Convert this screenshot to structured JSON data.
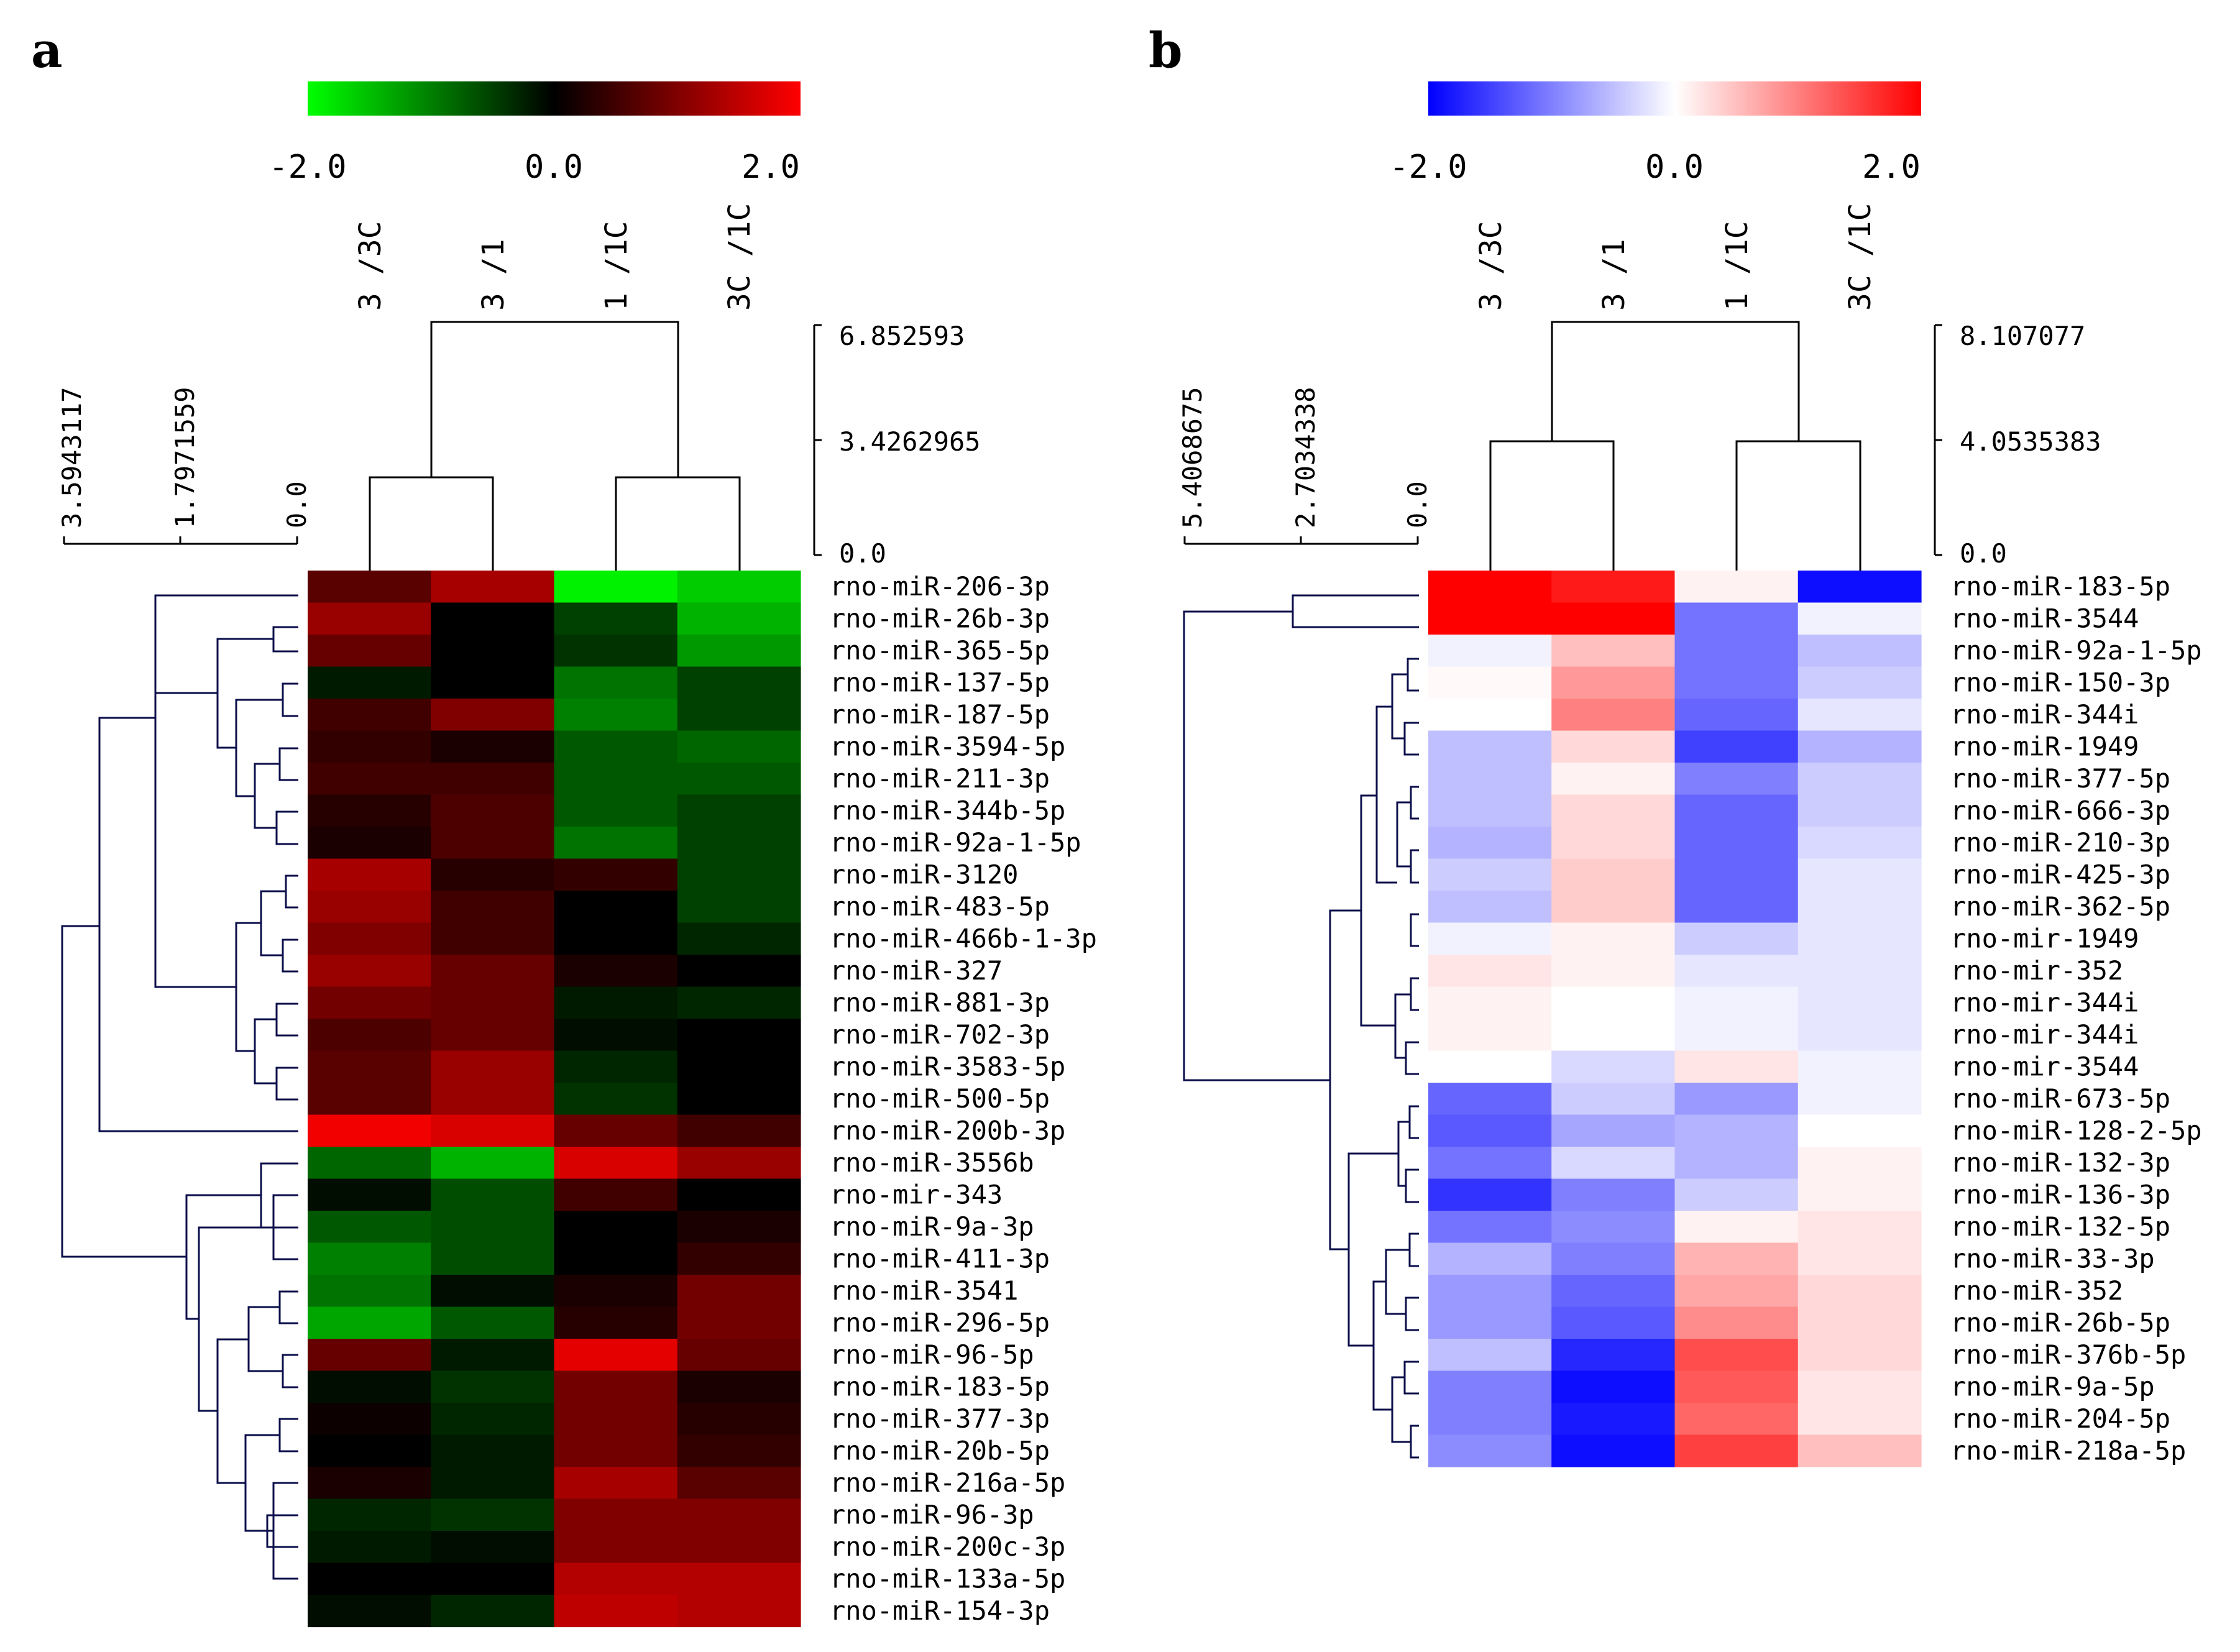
{
  "panels": [
    {
      "letter": "a",
      "colorbar": {
        "ticks": [
          "-2.0",
          "0.0",
          "2.0"
        ],
        "colors": [
          "#00ff00",
          "#000000",
          "#ff0000"
        ]
      },
      "columns": [
        "3 /3C",
        "3 /1",
        "1 /1C",
        "3C /1C"
      ],
      "col_dendro_scale": [
        "6.852593",
        "3.4262965",
        "0.0"
      ],
      "row_dendro_scale": [
        "3.5943117",
        "1.7971559",
        "0.0"
      ]
    },
    {
      "letter": "b",
      "colorbar": {
        "ticks": [
          "-2.0",
          "0.0",
          "2.0"
        ],
        "colors": [
          "#0000ff",
          "#ffffff",
          "#ff0000"
        ]
      },
      "columns": [
        "3 /3C",
        "3 /1",
        "1 /1C",
        "3C /1C"
      ],
      "col_dendro_scale": [
        "8.107077",
        "4.0535383",
        "0.0"
      ],
      "row_dendro_scale": [
        "5.4068675",
        "2.7034338",
        "0.0"
      ]
    }
  ],
  "chart_data": [
    {
      "type": "heatmap",
      "panel": "a",
      "columns": [
        "3 /3C",
        "3 /1",
        "1 /1C",
        "3C /1C"
      ],
      "color_range": [
        -2.0,
        2.0
      ],
      "rows": [
        "rno-miR-206-3p",
        "rno-miR-26b-3p",
        "rno-miR-365-5p",
        "rno-miR-137-5p",
        "rno-miR-187-5p",
        "rno-miR-3594-5p",
        "rno-miR-211-3p",
        "rno-miR-344b-5p",
        "rno-miR-92a-1-5p",
        "rno-miR-3120",
        "rno-miR-483-5p",
        "rno-miR-466b-1-3p",
        "rno-miR-327",
        "rno-miR-881-3p",
        "rno-miR-702-3p",
        "rno-miR-3583-5p",
        "rno-miR-500-5p",
        "rno-miR-200b-3p",
        "rno-miR-3556b",
        "rno-mir-343",
        "rno-miR-9a-3p",
        "rno-miR-411-3p",
        "rno-miR-3541",
        "rno-miR-296-5p",
        "rno-miR-96-5p",
        "rno-miR-183-5p",
        "rno-miR-377-3p",
        "rno-miR-20b-5p",
        "rno-miR-216a-5p",
        "rno-miR-96-3p",
        "rno-miR-200c-3p",
        "rno-miR-133a-5p",
        "rno-miR-154-3p"
      ],
      "values": [
        [
          0.7,
          1.3,
          -1.9,
          -1.6
        ],
        [
          1.2,
          0.0,
          -0.5,
          -1.4
        ],
        [
          0.8,
          0.0,
          -0.4,
          -1.2
        ],
        [
          -0.2,
          0.0,
          -0.9,
          -0.5
        ],
        [
          0.5,
          1.0,
          -1.0,
          -0.5
        ],
        [
          0.4,
          0.2,
          -0.7,
          -0.8
        ],
        [
          0.5,
          0.5,
          -0.7,
          -0.7
        ],
        [
          0.3,
          0.6,
          -0.7,
          -0.5
        ],
        [
          0.2,
          0.6,
          -0.9,
          -0.5
        ],
        [
          1.3,
          0.3,
          0.4,
          -0.5
        ],
        [
          1.2,
          0.5,
          0.0,
          -0.5
        ],
        [
          1.0,
          0.5,
          0.0,
          -0.3
        ],
        [
          1.2,
          0.8,
          0.2,
          0.0
        ],
        [
          0.9,
          0.8,
          -0.2,
          -0.3
        ],
        [
          0.6,
          0.8,
          -0.1,
          0.0
        ],
        [
          0.7,
          1.2,
          -0.3,
          0.0
        ],
        [
          0.7,
          1.2,
          -0.4,
          0.0
        ],
        [
          1.9,
          1.7,
          0.8,
          0.5
        ],
        [
          -0.8,
          -1.4,
          1.7,
          1.2
        ],
        [
          -0.1,
          -0.6,
          0.5,
          0.0
        ],
        [
          -0.7,
          -0.6,
          0.0,
          0.2
        ],
        [
          -1.0,
          -0.6,
          0.0,
          0.4
        ],
        [
          -0.9,
          -0.1,
          0.2,
          0.9
        ],
        [
          -1.3,
          -0.7,
          0.3,
          0.9
        ],
        [
          0.8,
          -0.2,
          1.8,
          0.8
        ],
        [
          -0.1,
          -0.4,
          0.9,
          0.2
        ],
        [
          0.1,
          -0.3,
          0.9,
          0.3
        ],
        [
          0.0,
          -0.2,
          0.9,
          0.4
        ],
        [
          0.2,
          -0.2,
          1.3,
          0.7
        ],
        [
          -0.3,
          -0.4,
          1.0,
          1.0
        ],
        [
          -0.2,
          -0.1,
          1.0,
          1.0
        ],
        [
          0.0,
          0.0,
          1.4,
          1.4
        ],
        [
          -0.1,
          -0.3,
          1.5,
          1.4
        ]
      ]
    },
    {
      "type": "heatmap",
      "panel": "b",
      "columns": [
        "3 /3C",
        "3 /1",
        "1 /1C",
        "3C /1C"
      ],
      "color_range": [
        -2.0,
        2.0
      ],
      "rows": [
        "rno-miR-183-5p",
        "rno-miR-3544",
        "rno-miR-92a-1-5p",
        "rno-miR-150-3p",
        "rno-miR-344i",
        "rno-miR-1949",
        "rno-miR-377-5p",
        "rno-miR-666-3p",
        "rno-miR-210-3p",
        "rno-miR-425-3p",
        "rno-miR-362-5p",
        "rno-mir-1949",
        "rno-mir-352",
        "rno-mir-344i",
        "rno-mir-344i",
        "rno-mir-3544",
        "rno-miR-673-5p",
        "rno-miR-128-2-5p",
        "rno-miR-132-3p",
        "rno-miR-136-3p",
        "rno-miR-132-5p",
        "rno-miR-33-3p",
        "rno-miR-352",
        "rno-miR-26b-5p",
        "rno-miR-376b-5p",
        "rno-miR-9a-5p",
        "rno-miR-204-5p",
        "rno-miR-218a-5p"
      ],
      "values": [
        [
          2.0,
          1.8,
          0.1,
          -1.9
        ],
        [
          2.0,
          2.0,
          -1.1,
          -0.1
        ],
        [
          -0.1,
          0.5,
          -1.1,
          -0.5
        ],
        [
          0.05,
          0.8,
          -1.1,
          -0.4
        ],
        [
          0.0,
          1.0,
          -1.2,
          -0.2
        ],
        [
          -0.5,
          0.3,
          -1.5,
          -0.6
        ],
        [
          -0.5,
          0.1,
          -1.0,
          -0.4
        ],
        [
          -0.5,
          0.3,
          -1.2,
          -0.4
        ],
        [
          -0.6,
          0.3,
          -1.2,
          -0.3
        ],
        [
          -0.4,
          0.4,
          -1.2,
          -0.2
        ],
        [
          -0.5,
          0.4,
          -1.2,
          -0.2
        ],
        [
          -0.1,
          0.1,
          -0.4,
          -0.2
        ],
        [
          0.2,
          0.1,
          -0.2,
          -0.2
        ],
        [
          0.1,
          0.0,
          -0.1,
          -0.2
        ],
        [
          0.1,
          0.0,
          -0.1,
          -0.2
        ],
        [
          0.0,
          -0.3,
          0.2,
          -0.1
        ],
        [
          -1.2,
          -0.4,
          -0.8,
          -0.1
        ],
        [
          -1.3,
          -0.7,
          -0.6,
          0.0
        ],
        [
          -1.1,
          -0.3,
          -0.6,
          0.1
        ],
        [
          -1.6,
          -1.0,
          -0.4,
          0.1
        ],
        [
          -1.1,
          -0.9,
          0.1,
          0.2
        ],
        [
          -0.6,
          -1.0,
          0.6,
          0.2
        ],
        [
          -0.8,
          -1.2,
          0.7,
          0.3
        ],
        [
          -0.8,
          -1.3,
          0.9,
          0.3
        ],
        [
          -0.5,
          -1.7,
          1.4,
          0.3
        ],
        [
          -1.0,
          -1.9,
          1.3,
          0.2
        ],
        [
          -1.0,
          -1.8,
          1.2,
          0.2
        ],
        [
          -0.9,
          -1.9,
          1.5,
          0.5
        ]
      ]
    }
  ]
}
